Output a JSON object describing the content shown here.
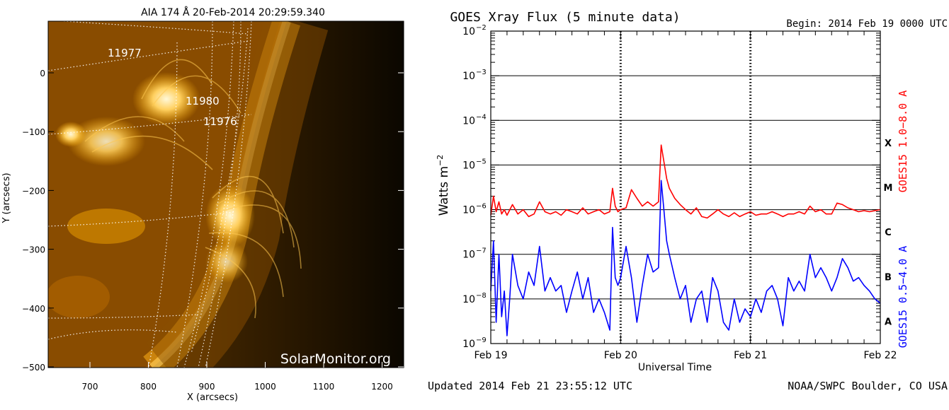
{
  "aia_panel": {
    "title": "AIA 174 Å 20-Feb-2014 20:29:59.340",
    "xlabel": "X (arcsecs)",
    "ylabel": "Y (arcsecs)",
    "x_ticks": [
      "700",
      "800",
      "900",
      "1000",
      "1100",
      "1200"
    ],
    "y_ticks": [
      "0",
      "−100",
      "−200",
      "−300",
      "−400",
      "−500"
    ],
    "regions": [
      "11977",
      "11980",
      "11976"
    ],
    "watermark": "SolarMonitor.org",
    "colors": {
      "disk": "#f4a300",
      "bright": "#fff2c0",
      "sky": "#0b0700"
    }
  },
  "goes_panel": {
    "title": "GOES Xray Flux (5 minute data)",
    "begin_label": "Begin:  2014 Feb 19 0000 UTC",
    "ylabel": "Watts m",
    "ylabel_sup": "−2",
    "xlabel": "Universal Time",
    "x_ticks": [
      "Feb 19",
      "Feb 20",
      "Feb 21",
      "Feb 22"
    ],
    "flare_classes": [
      "X",
      "M",
      "C",
      "B",
      "A"
    ],
    "series_label_long": "GOES15 1.0−8.0 A",
    "series_label_short": "GOES15 0.5−4.0 A",
    "updated": "Updated 2014 Feb 21 23:55:12 UTC",
    "credit": "NOAA/SWPC Boulder, CO USA",
    "colors": {
      "long": "#ff0000",
      "short": "#0000ff"
    }
  },
  "chart_data": {
    "type": "line",
    "title": "GOES Xray Flux (5 minute data)",
    "xlabel": "Universal Time",
    "ylabel": "Watts m-2",
    "x_unit": "hours since Feb 19 00:00 UTC",
    "xlim": [
      0,
      72
    ],
    "ylim": [
      1e-09,
      0.01
    ],
    "yscale": "log",
    "y_ticks": [
      "10^-9",
      "10^-8",
      "10^-7",
      "10^-6",
      "10^-5",
      "10^-4",
      "10^-3",
      "10^-2"
    ],
    "grid": true,
    "series": [
      {
        "name": "GOES15 1.0-8.0 A",
        "color": "#ff0000",
        "x": [
          0,
          0.5,
          1,
          1.5,
          2,
          2.5,
          3,
          4,
          5,
          6,
          7,
          8,
          9,
          10,
          11,
          12,
          13,
          14,
          15,
          16,
          17,
          18,
          19,
          20,
          21,
          22,
          22.5,
          23,
          23.5,
          24,
          25,
          26,
          27,
          28,
          29,
          30,
          31,
          31.5,
          32,
          32.5,
          33,
          34,
          35,
          36,
          37,
          38,
          39,
          40,
          41,
          42,
          43,
          44,
          45,
          46,
          47,
          48,
          49,
          50,
          51,
          52,
          53,
          54,
          55,
          56,
          57,
          58,
          59,
          60,
          61,
          62,
          63,
          64,
          65,
          66,
          67,
          68,
          69,
          70,
          71,
          72
        ],
        "y": [
          7.5e-07,
          2e-06,
          9e-07,
          1.5e-06,
          8e-07,
          1e-06,
          7.5e-07,
          1.3e-06,
          8e-07,
          1e-06,
          7e-07,
          8e-07,
          1.5e-06,
          9e-07,
          8e-07,
          9e-07,
          7.5e-07,
          1e-06,
          9e-07,
          8e-07,
          1.1e-06,
          8e-07,
          9e-07,
          1e-06,
          8e-07,
          9e-07,
          3e-06,
          1.2e-06,
          9e-07,
          1e-06,
          1.1e-06,
          2.8e-06,
          1.8e-06,
          1.2e-06,
          1.5e-06,
          1.2e-06,
          1.5e-06,
          2.8e-05,
          1.2e-05,
          5e-06,
          3e-06,
          1.8e-06,
          1.3e-06,
          1e-06,
          8e-07,
          1.1e-06,
          7e-07,
          6.5e-07,
          8e-07,
          1e-06,
          8e-07,
          7e-07,
          8.5e-07,
          7e-07,
          8e-07,
          9e-07,
          7.5e-07,
          8e-07,
          8e-07,
          9e-07,
          8e-07,
          7e-07,
          8e-07,
          8e-07,
          9e-07,
          8e-07,
          1.2e-06,
          9e-07,
          1e-06,
          8e-07,
          8e-07,
          1.4e-06,
          1.3e-06,
          1.1e-06,
          1e-06,
          9e-07,
          9.5e-07,
          9e-07,
          9.5e-07,
          1e-06
        ]
      },
      {
        "name": "GOES15 0.5-4.0 A",
        "color": "#0000ff",
        "x": [
          0,
          0.5,
          1,
          1.5,
          2,
          2.5,
          3,
          3.5,
          4,
          5,
          6,
          7,
          8,
          9,
          10,
          11,
          12,
          13,
          14,
          15,
          16,
          17,
          18,
          19,
          20,
          21,
          22,
          22.5,
          23,
          23.5,
          24,
          25,
          26,
          27,
          28,
          29,
          30,
          31,
          31.5,
          32,
          32.5,
          33,
          34,
          35,
          36,
          37,
          38,
          39,
          40,
          41,
          42,
          43,
          44,
          45,
          46,
          47,
          48,
          49,
          50,
          51,
          52,
          53,
          54,
          55,
          56,
          57,
          58,
          59,
          60,
          61,
          62,
          63,
          64,
          65,
          66,
          67,
          68,
          69,
          70,
          71,
          72
        ],
        "y": [
          1.5e-08,
          2e-07,
          3e-09,
          1e-07,
          4e-09,
          1.5e-08,
          1.5e-09,
          1e-08,
          1e-07,
          2e-08,
          1e-08,
          4e-08,
          2e-08,
          1.5e-07,
          1.5e-08,
          3e-08,
          1.5e-08,
          2e-08,
          5e-09,
          1.5e-08,
          4e-08,
          1e-08,
          3e-08,
          5e-09,
          1e-08,
          5e-09,
          2e-09,
          4e-07,
          3e-08,
          2e-08,
          3e-08,
          1.5e-07,
          3e-08,
          3e-09,
          2e-08,
          1e-07,
          4e-08,
          5e-08,
          4.5e-06,
          1e-06,
          2e-07,
          1e-07,
          3e-08,
          1e-08,
          2e-08,
          3e-09,
          1e-08,
          1.5e-08,
          3e-09,
          3e-08,
          1.5e-08,
          3e-09,
          2e-09,
          1e-08,
          3e-09,
          6e-09,
          4e-09,
          1e-08,
          5e-09,
          1.5e-08,
          2e-08,
          1e-08,
          2.5e-09,
          3e-08,
          1.5e-08,
          2.5e-08,
          1.5e-08,
          1e-07,
          3e-08,
          5e-08,
          3e-08,
          1.5e-08,
          3e-08,
          8e-08,
          5e-08,
          2.5e-08,
          3e-08,
          2e-08,
          1.5e-08,
          1e-08,
          8e-09
        ]
      }
    ]
  }
}
